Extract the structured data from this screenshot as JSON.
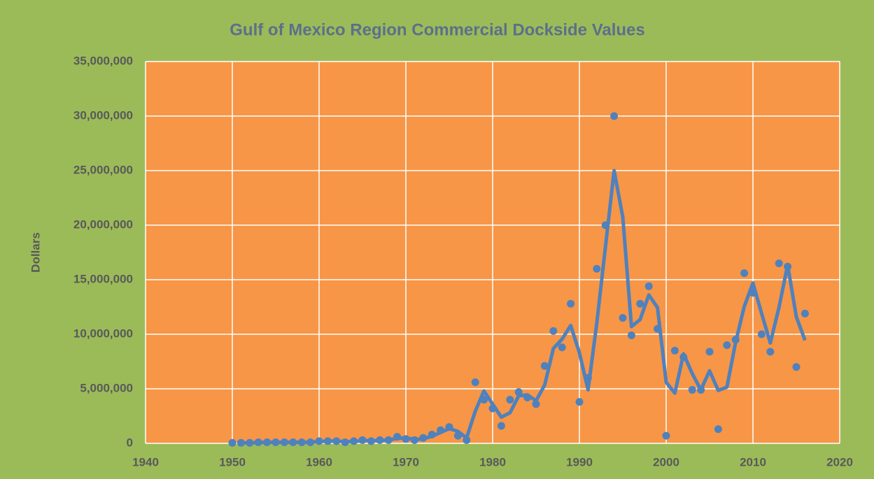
{
  "chart_data": {
    "type": "scatter",
    "title": "Gulf of Mexico Region Commercial Dockside Values",
    "ylabel": "Dollars",
    "x": [
      1950,
      1951,
      1952,
      1953,
      1954,
      1955,
      1956,
      1957,
      1958,
      1959,
      1960,
      1961,
      1962,
      1963,
      1964,
      1965,
      1966,
      1967,
      1968,
      1969,
      1970,
      1971,
      1972,
      1973,
      1974,
      1975,
      1976,
      1977,
      1978,
      1979,
      1980,
      1981,
      1982,
      1983,
      1984,
      1985,
      1986,
      1987,
      1988,
      1989,
      1990,
      1991,
      1992,
      1993,
      1994,
      1995,
      1996,
      1997,
      1998,
      1999,
      2000,
      2001,
      2002,
      2003,
      2004,
      2005,
      2006,
      2007,
      2008,
      2009,
      2010,
      2011,
      2012,
      2013,
      2014,
      2015,
      2016
    ],
    "series": [
      {
        "color": "#4f81bd",
        "marker": "circle",
        "values": [
          50000,
          50000,
          50000,
          100000,
          100000,
          100000,
          100000,
          100000,
          100000,
          100000,
          200000,
          200000,
          200000,
          100000,
          200000,
          300000,
          200000,
          300000,
          300000,
          600000,
          400000,
          300000,
          500000,
          800000,
          1200000,
          1500000,
          700000,
          300000,
          5600000,
          4000000,
          3200000,
          1600000,
          4000000,
          4700000,
          4200000,
          3600000,
          7100000,
          10300000,
          8800000,
          12800000,
          3800000,
          6000000,
          16000000,
          20000000,
          30000000,
          11500000,
          9900000,
          12800000,
          14400000,
          10500000,
          700000,
          8500000,
          7900000,
          4900000,
          4900000,
          8400000,
          1300000,
          9000000,
          9500000,
          15600000,
          13800000,
          10000000,
          8400000,
          16500000,
          16200000,
          7000000,
          11900000
        ]
      },
      {
        "color": "#4f81bd",
        "marker": "line",
        "values": [
          null,
          50000,
          50000,
          75000,
          100000,
          100000,
          100000,
          100000,
          100000,
          100000,
          150000,
          200000,
          200000,
          150000,
          150000,
          250000,
          250000,
          250000,
          300000,
          450000,
          500000,
          350000,
          400000,
          650000,
          1000000,
          1350000,
          1100000,
          500000,
          2950000,
          4800000,
          3600000,
          2400000,
          2800000,
          4350000,
          4450000,
          3900000,
          5350000,
          8700000,
          9550000,
          10800000,
          8300000,
          4900000,
          11000000,
          18000000,
          25000000,
          20750000,
          10700000,
          11350000,
          13600000,
          12450000,
          5600000,
          4600000,
          8200000,
          6400000,
          4900000,
          6650000,
          4850000,
          5150000,
          9250000,
          12550000,
          14700000,
          11900000,
          9200000,
          12450000,
          16350000,
          11600000,
          9450000
        ]
      }
    ],
    "xlim": [
      1940,
      2020
    ],
    "xticks": [
      1940,
      1950,
      1960,
      1970,
      1980,
      1990,
      2000,
      2010,
      2020
    ],
    "ylim": [
      0,
      35000000
    ],
    "yticks": [
      0,
      {
        "value": 5000000,
        "label": "5,000,000"
      },
      {
        "value": 10000000,
        "label": "10,000,000"
      },
      {
        "value": 15000000,
        "label": "15,000,000"
      },
      {
        "value": 20000000,
        "label": "20,000,000"
      },
      {
        "value": 25000000,
        "label": "25,000,000"
      },
      {
        "value": 30000000,
        "label": "30,000,000"
      },
      {
        "value": 35000000,
        "label": "35,000,000"
      }
    ],
    "grid": true
  }
}
